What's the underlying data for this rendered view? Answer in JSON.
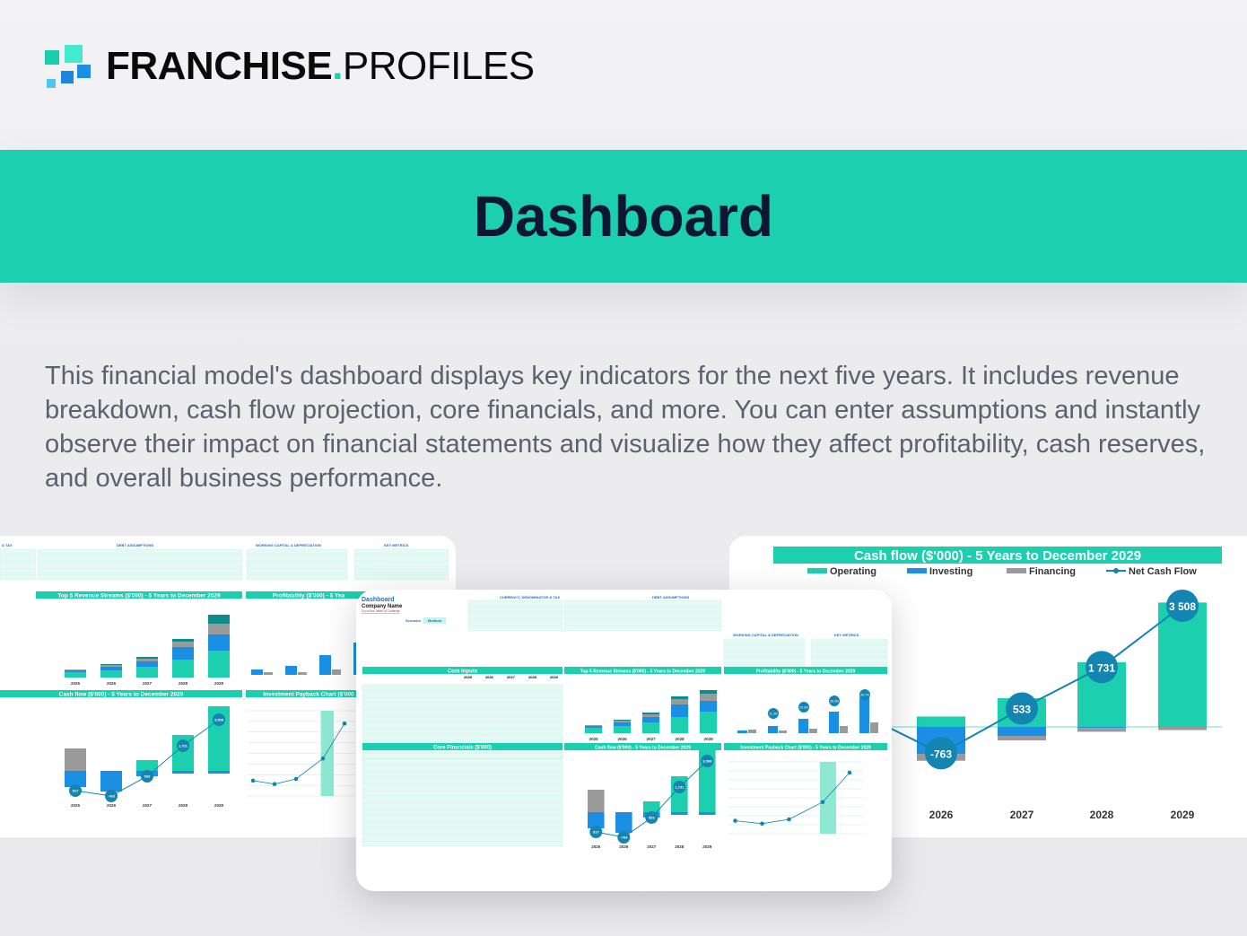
{
  "brand": {
    "name_bold": "FRANCHISE",
    "dot": ".",
    "name_light": "PROFILES",
    "colors": {
      "teal": "#1ccfae",
      "navy": "#0d1733",
      "blue": "#1a8fe3",
      "light_blue": "#45c6f0"
    }
  },
  "header": {
    "title": "Dashboard"
  },
  "description": "This financial model's dashboard displays key indicators for the next five years. It includes revenue breakdown, cash flow projection, core financials, and more. You can enter assumptions and instantly observe their impact on financial statements and visualize how they affect profitability, cash reserves, and overall business performance.",
  "center": {
    "title": "Dashboard",
    "company": "Company Name",
    "toc_link": "Go to the Table of Contents",
    "scenario_label": "Scenario",
    "scenario_value": "Medium",
    "sections": {
      "currency": "CURRENCY, DENOMINATOR & TAX",
      "debt": "DEBT ASSUMPTIONS",
      "wc": "WORKING CAPITAL & DEPRECIATION",
      "kpi": "KEY METRICS",
      "core_inputs": "Core Inputs",
      "revenue": "Top 5 Revenue Streams ($'000) - 5 Years to December 2029",
      "profit": "Profitability ($'000) - 5 Years to December 2029",
      "core_fin": "Core Financials ($'000)",
      "cashflow": "Cash flow ($'000) - 5 Years to December 2029",
      "payback": "Investment Payback Chart ($'000) - 5 Years to December 2029"
    },
    "years": [
      "2025",
      "2026",
      "2027",
      "2028",
      "2029"
    ],
    "profit_labels": [
      "11.3%",
      "20.3%",
      "26.3%",
      "30.7%"
    ],
    "cash_labels": [
      "917",
      "-763",
      "533",
      "1,731",
      "3,508"
    ]
  },
  "left": {
    "sections": {
      "tax": "& TAX",
      "debt": "DEBT ASSUMPTIONS",
      "wc": "WORKING CAPITAL & DEPRECIATION",
      "kpi": "KEY METRICS",
      "revenue": "Top 5 Revenue Streams ($'000) - 5 Years to December 2029",
      "profit": "Profitability ($'000) - 5 Yea",
      "cashflow": "Cash flow ($'000) - 5 Years to December 2029",
      "payback": "Investment Payback Chart ($'000"
    },
    "years": [
      "2025",
      "2026",
      "2027",
      "2028",
      "2029"
    ],
    "cash_labels": [
      "917",
      "-763",
      "533",
      "1,731",
      "3,508"
    ]
  },
  "chart_data": {
    "type": "bar",
    "title": "Cash flow ($'000) - 5 Years to December 2029",
    "categories": [
      "2026",
      "2027",
      "2028",
      "2029"
    ],
    "series": [
      {
        "name": "Operating",
        "color": "#1ccfae",
        "values": [
          300,
          830,
          1870,
          3600
        ]
      },
      {
        "name": "Investing",
        "color": "#1a8fe3",
        "values": [
          -780,
          -260,
          -30,
          0
        ]
      },
      {
        "name": "Financing",
        "color": "#9a9a9a",
        "values": [
          -200,
          -130,
          -110,
          -92
        ]
      },
      {
        "name": "Net Cash Flow",
        "type": "line",
        "color": "#1385b0",
        "values": [
          -763,
          533,
          1731,
          3508
        ]
      }
    ],
    "data_labels": [
      "-763",
      "533",
      "1 731",
      "3 508"
    ],
    "legend": "top"
  }
}
